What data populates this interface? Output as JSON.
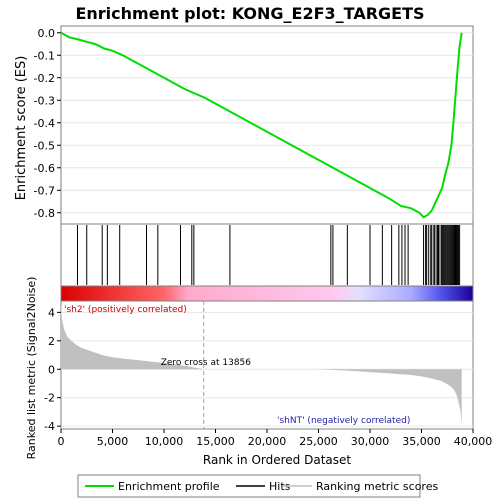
{
  "chart_data": {
    "type": "line",
    "title": "Enrichment plot: KONG_E2F3_TARGETS",
    "top_panel": {
      "ylabel": "Enrichment score (ES)",
      "ylim": [
        -0.85,
        0.03
      ],
      "yticks": [
        0.0,
        -0.1,
        -0.2,
        -0.3,
        -0.4,
        -0.5,
        -0.6,
        -0.7,
        -0.8
      ],
      "ytick_labels": [
        "0.0",
        "-0.1",
        "-0.2",
        "-0.3",
        "-0.4",
        "-0.5",
        "-0.6",
        "-0.7",
        "-0.8"
      ],
      "series": [
        {
          "name": "Enrichment profile",
          "color": "#00dd00",
          "x": [
            0,
            800,
            1700,
            2500,
            3300,
            4200,
            5000,
            6000,
            8000,
            10000,
            12000,
            14000,
            16000,
            18000,
            20000,
            22000,
            24000,
            26000,
            28000,
            30000,
            32000,
            33000,
            34000,
            34800,
            35200,
            35600,
            36000,
            36300,
            36600,
            37000,
            37300,
            37600,
            37900,
            38100,
            38300,
            38500,
            38700,
            38900
          ],
          "y": [
            0.0,
            -0.02,
            -0.03,
            -0.04,
            -0.05,
            -0.07,
            -0.08,
            -0.1,
            -0.15,
            -0.2,
            -0.25,
            -0.29,
            -0.34,
            -0.39,
            -0.44,
            -0.49,
            -0.54,
            -0.59,
            -0.64,
            -0.69,
            -0.74,
            -0.77,
            -0.78,
            -0.8,
            -0.82,
            -0.81,
            -0.79,
            -0.76,
            -0.73,
            -0.69,
            -0.63,
            -0.58,
            -0.5,
            -0.4,
            -0.28,
            -0.16,
            -0.06,
            0.0
          ]
        }
      ]
    },
    "hits_panel": {
      "hit_positions": [
        1600,
        2500,
        4000,
        4500,
        5700,
        8300,
        9400,
        11600,
        12700,
        12900,
        16400,
        26200,
        26400,
        27800,
        30000,
        31200,
        32100,
        32800,
        33100,
        33400,
        33700,
        35200,
        35400,
        35500,
        35700,
        35900,
        36000,
        36200,
        36300,
        36500,
        36600,
        36700,
        36900,
        37000,
        37100,
        37200,
        37300,
        37400,
        37500,
        37600,
        37700,
        37800,
        37900,
        38000,
        38100,
        38200,
        38300,
        38400,
        38500,
        38600,
        38700
      ]
    },
    "bottom_panel": {
      "ylabel": "Ranked list metric (Signal2Noise)",
      "xlabel": "Rank in Ordered Dataset",
      "ylim": [
        -4.2,
        4.8
      ],
      "yticks": [
        4,
        2,
        0,
        -2,
        -4
      ],
      "ytick_labels": [
        "4",
        "2",
        "0",
        "-2",
        "-4"
      ],
      "xlim": [
        0,
        40000
      ],
      "xticks": [
        0,
        5000,
        10000,
        15000,
        20000,
        25000,
        30000,
        35000,
        40000
      ],
      "xtick_labels": [
        "0",
        "5,000",
        "10,000",
        "15,000",
        "20,000",
        "25,000",
        "30,000",
        "35,000",
        "40,000"
      ],
      "metric": {
        "x": [
          0,
          100,
          300,
          600,
          1000,
          1500,
          2000,
          3000,
          4000,
          5000,
          6000,
          7000,
          8000,
          9000,
          10000,
          11000,
          12000,
          13000,
          13856,
          15000,
          20000,
          25000,
          28000,
          30000,
          32000,
          34000,
          35000,
          36000,
          36800,
          37400,
          37900,
          38200,
          38400,
          38600,
          38800,
          38900
        ],
        "y": [
          4.6,
          3.5,
          2.8,
          2.3,
          2.0,
          1.7,
          1.5,
          1.25,
          1.0,
          0.85,
          0.75,
          0.68,
          0.6,
          0.52,
          0.45,
          0.35,
          0.25,
          0.12,
          0.0,
          0.0,
          0.0,
          0.0,
          -0.1,
          -0.2,
          -0.3,
          -0.4,
          -0.5,
          -0.65,
          -0.8,
          -1.0,
          -1.25,
          -1.5,
          -1.8,
          -2.3,
          -3.0,
          -3.9
        ]
      },
      "zero_cross_rank": 13856,
      "zero_cross_label": "Zero cross at 13856",
      "pos_label": "'sh2' (positively correlated)",
      "neg_label": "'shNT' (negatively correlated)"
    },
    "legend": {
      "placement": "bottom",
      "items": [
        {
          "label": "Enrichment profile",
          "color": "#00dd00"
        },
        {
          "label": "Hits",
          "color": "#000000"
        },
        {
          "label": "Ranking metric scores",
          "color": "#c0c0c0"
        }
      ]
    }
  }
}
